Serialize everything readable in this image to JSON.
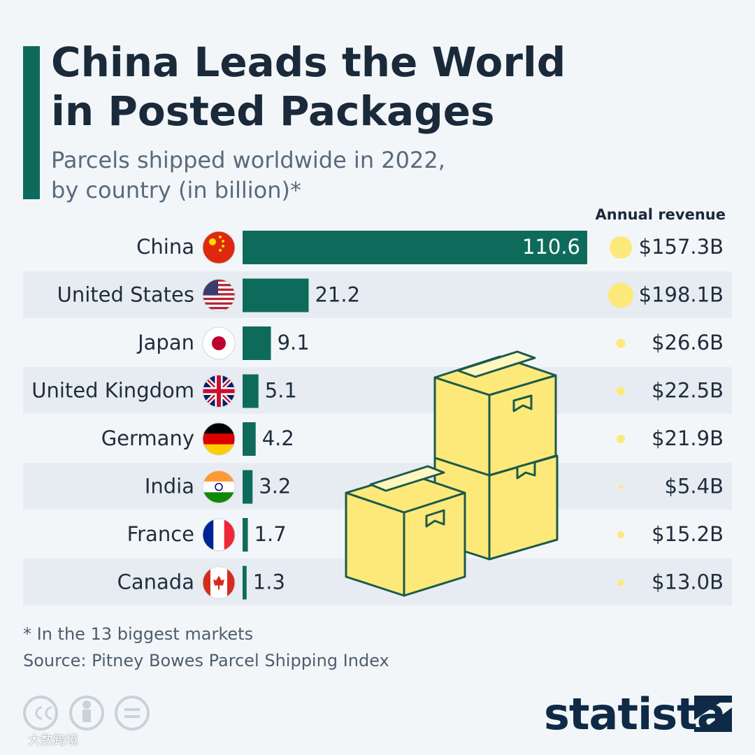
{
  "chart_data": {
    "type": "bar",
    "orientation": "horizontal",
    "title": "China Leads the World in Posted Packages",
    "subtitle": "Parcels shipped worldwide in 2022, by country (in billion)*",
    "categories": [
      "China",
      "United States",
      "Japan",
      "United Kingdom",
      "Germany",
      "India",
      "France",
      "Canada"
    ],
    "values": [
      110.6,
      21.2,
      9.1,
      5.1,
      4.2,
      3.2,
      1.7,
      1.3
    ],
    "color": "#0e6b5c",
    "revenue": {
      "name": "Annual revenue",
      "color": "#fde97a",
      "values": [
        157.3,
        198.1,
        26.6,
        22.5,
        21.9,
        5.4,
        15.2,
        13.0
      ],
      "value_labels": [
        "$157.3B",
        "$198.1B",
        "$26.6B",
        "$22.5B",
        "$21.9B",
        "$5.4B",
        "$15.2B",
        "$13.0B"
      ]
    },
    "note": "* In the 13 biggest markets",
    "source": "Source: Pitney Bowes Parcel Shipping Index",
    "brand": "statista",
    "watermark": "大数跨境"
  }
}
